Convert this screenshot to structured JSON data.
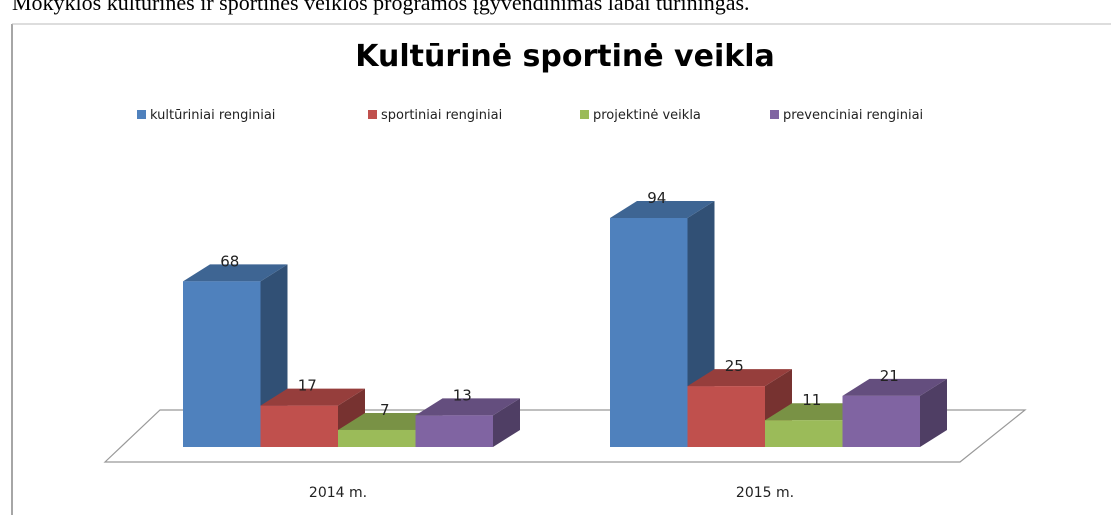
{
  "document_text": "Mokyklos kultūrinės ir sportinės veiklos programos įgyvendinimas labai turiningas.",
  "chart_data": {
    "type": "bar3d",
    "title": "Kultūrinė sportinė veikla",
    "categories": [
      "2014 m.",
      "2015 m."
    ],
    "series": [
      {
        "name": "kultūriniai renginiai",
        "color": "#4f81bd",
        "values": [
          68,
          94
        ]
      },
      {
        "name": "sportiniai renginiai",
        "color": "#c0504d",
        "values": [
          17,
          25
        ]
      },
      {
        "name": "projektinė veikla",
        "color": "#9bbb59",
        "values": [
          7,
          11
        ]
      },
      {
        "name": "prevenciniai renginiai",
        "color": "#8064a2",
        "values": [
          13,
          21
        ]
      }
    ],
    "legend": "top"
  }
}
